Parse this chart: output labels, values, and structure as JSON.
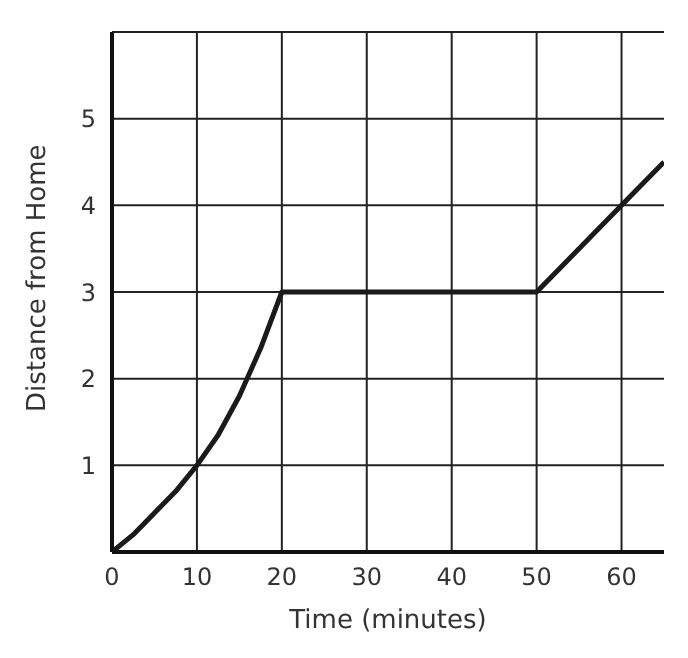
{
  "chart_data": {
    "type": "line",
    "xlabel": "Time (minutes)",
    "ylabel": "Distance from Home",
    "x": [
      0,
      2.5,
      5,
      7.5,
      10,
      12.5,
      15,
      17.5,
      20,
      30,
      40,
      50,
      60,
      65
    ],
    "series": [
      {
        "color": "#1a1a1a",
        "values": [
          0,
          0.2,
          0.45,
          0.7,
          1,
          1.35,
          1.8,
          2.35,
          3,
          3,
          3,
          3,
          4,
          4.5
        ]
      }
    ],
    "xlim": [
      0,
      65
    ],
    "xticks": [
      0,
      10,
      20,
      30,
      40,
      50,
      60
    ],
    "ylim": [
      0,
      6
    ],
    "yticks": [
      {
        "value": 0,
        "label": null
      },
      1,
      2,
      3,
      4,
      5,
      {
        "value": 6,
        "label": null
      }
    ],
    "grid": true,
    "marker": "none",
    "line_style": "solid"
  }
}
